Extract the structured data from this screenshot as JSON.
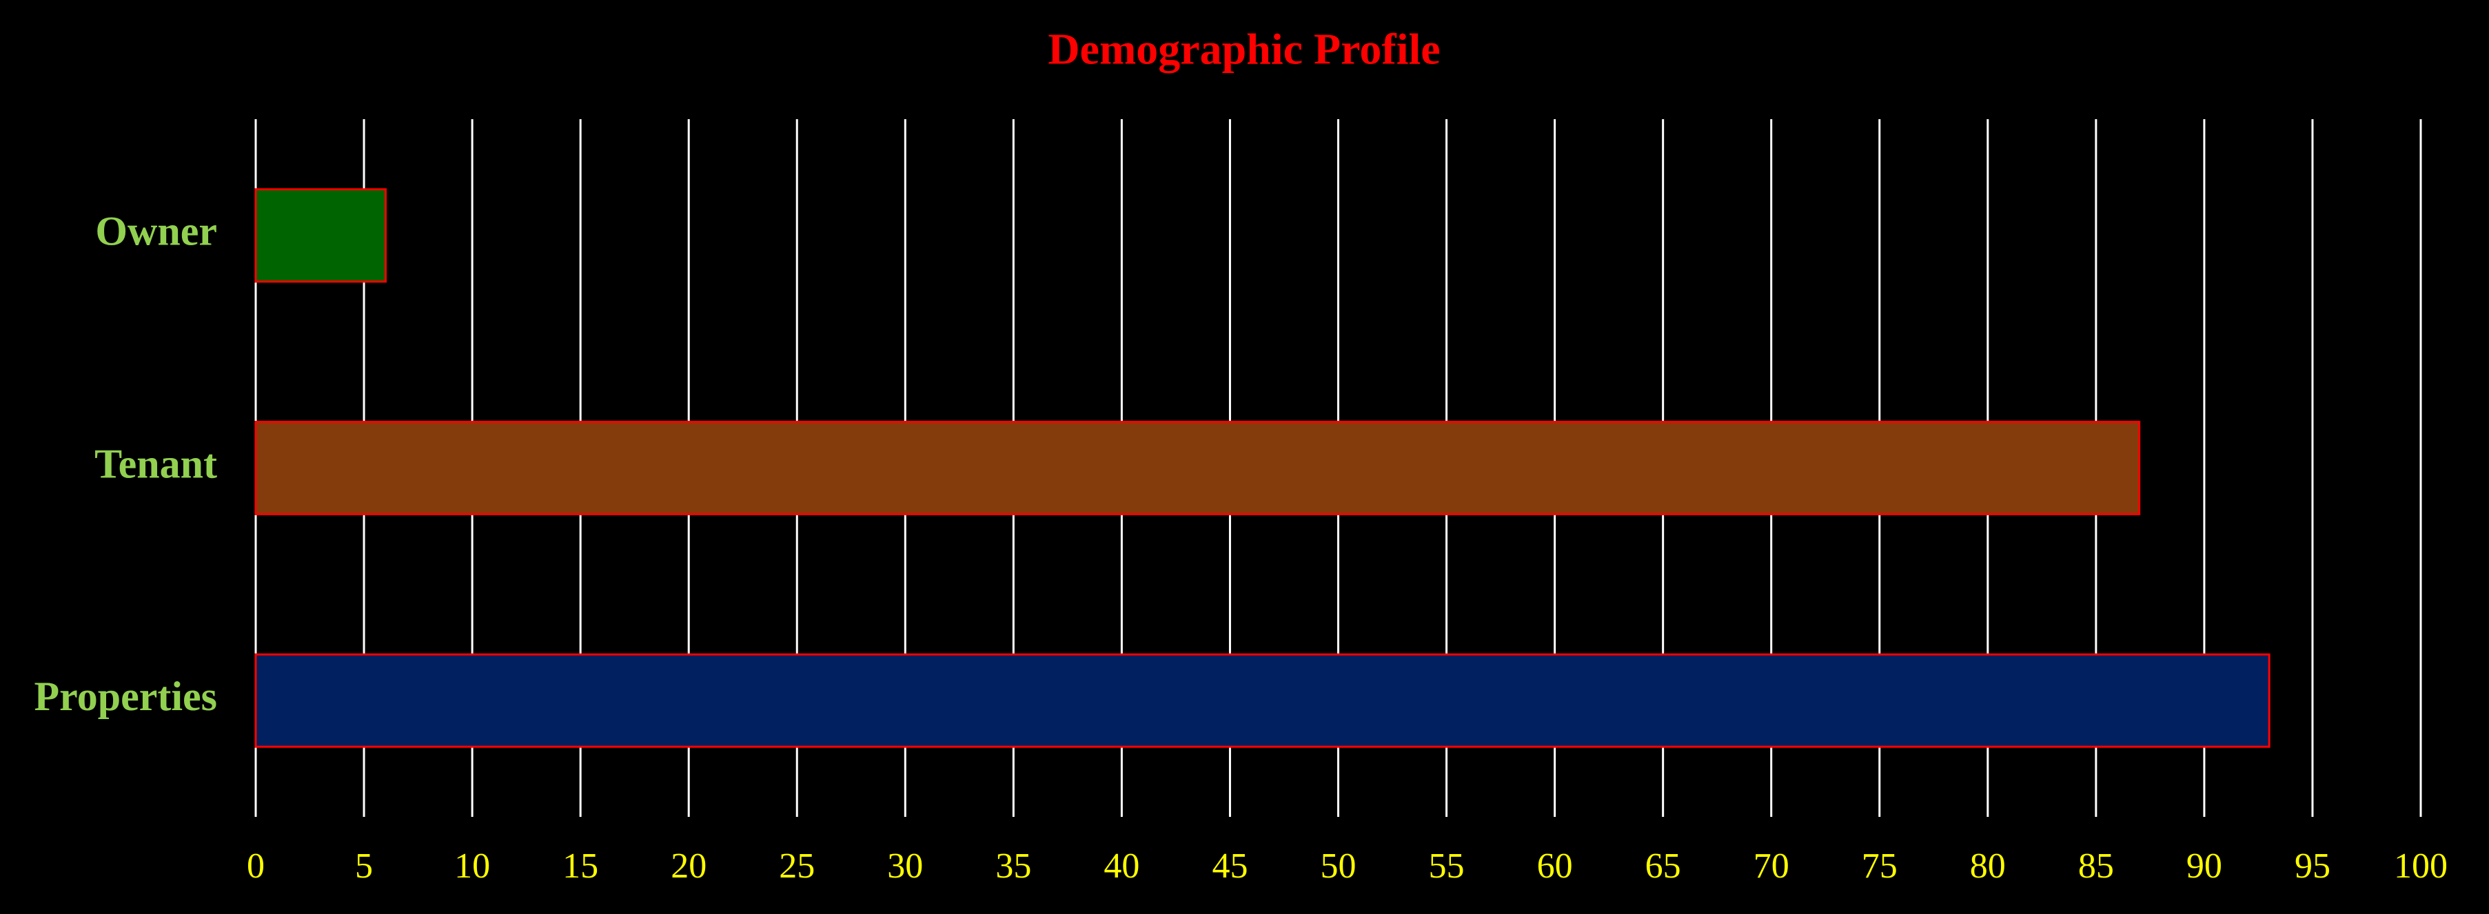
{
  "chart_data": {
    "type": "bar",
    "orientation": "horizontal",
    "title": "Demographic Profile",
    "categories": [
      "Owner",
      "Tenant",
      "Properties"
    ],
    "values": [
      6,
      87,
      93
    ],
    "colors": [
      "#006400",
      "#843c0c",
      "#002060"
    ],
    "bar_edge_color": "#ff0000",
    "xlim": [
      0,
      100
    ],
    "xticks": [
      0,
      5,
      10,
      15,
      20,
      25,
      30,
      35,
      40,
      45,
      50,
      55,
      60,
      65,
      70,
      75,
      80,
      85,
      90,
      95,
      100
    ],
    "grid": true
  }
}
